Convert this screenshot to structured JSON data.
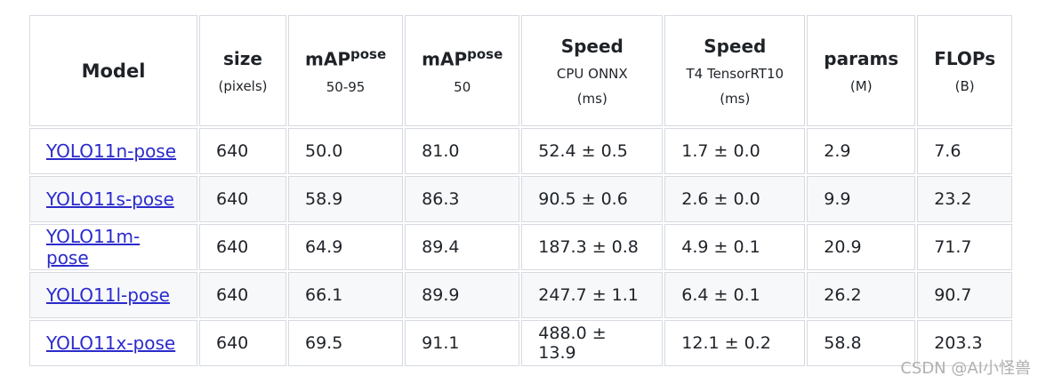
{
  "table": {
    "header": [
      {
        "title": "Model"
      },
      {
        "title": "size",
        "lines": [
          "(pixels)"
        ]
      },
      {
        "title": "mAP",
        "sup": "pose",
        "lines": [
          "50-95"
        ]
      },
      {
        "title": "mAP",
        "sup": "pose",
        "lines": [
          "50"
        ]
      },
      {
        "title": "Speed",
        "lines": [
          "CPU ONNX",
          "(ms)"
        ]
      },
      {
        "title": "Speed",
        "lines": [
          "T4 TensorRT10",
          "(ms)"
        ]
      },
      {
        "title": "params",
        "lines": [
          "(M)"
        ]
      },
      {
        "title": "FLOPs",
        "lines": [
          "(B)"
        ]
      }
    ],
    "rows": [
      [
        "YOLO11n-pose",
        "640",
        "50.0",
        "81.0",
        "52.4 ± 0.5",
        "1.7 ± 0.0",
        "2.9",
        "7.6"
      ],
      [
        "YOLO11s-pose",
        "640",
        "58.9",
        "86.3",
        "90.5 ± 0.6",
        "2.6 ± 0.0",
        "9.9",
        "23.2"
      ],
      [
        "YOLO11m-pose",
        "640",
        "64.9",
        "89.4",
        "187.3 ± 0.8",
        "4.9 ± 0.1",
        "20.9",
        "71.7"
      ],
      [
        "YOLO11l-pose",
        "640",
        "66.1",
        "89.9",
        "247.7 ± 1.1",
        "6.4 ± 0.1",
        "26.2",
        "90.7"
      ],
      [
        "YOLO11x-pose",
        "640",
        "69.5",
        "91.1",
        "488.0 ± 13.9",
        "12.1 ± 0.2",
        "58.8",
        "203.3"
      ]
    ]
  },
  "watermark": "CSDN @AI小怪兽"
}
